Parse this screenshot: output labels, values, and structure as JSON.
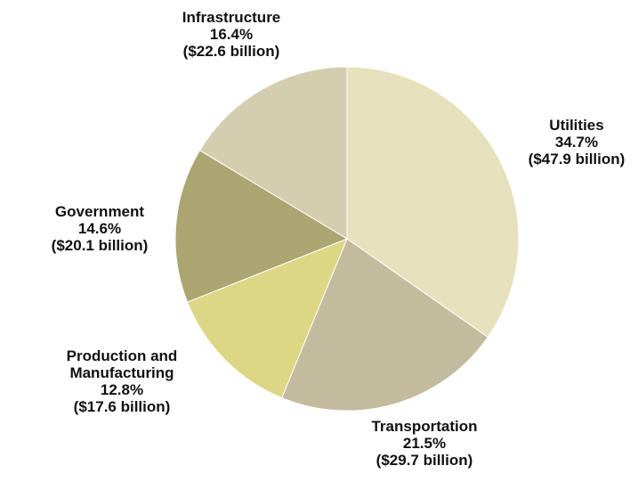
{
  "chart_data": {
    "type": "pie",
    "slices": [
      {
        "name": "Utilities",
        "percent": 34.7,
        "amount": "$47.9 billion",
        "lines": [
          "Utilities",
          "34.7%",
          "($47.9 billion)"
        ],
        "color": "#e6e1bc"
      },
      {
        "name": "Transportation",
        "percent": 21.5,
        "amount": "$29.7 billion",
        "lines": [
          "Transportation",
          "21.5%",
          "($29.7 billion)"
        ],
        "color": "#c3bb9d"
      },
      {
        "name": "Production and Manufacturing",
        "percent": 12.8,
        "amount": "$17.6 billion",
        "lines": [
          "Production and",
          "Manufacturing",
          "12.8%",
          "($17.6 billion)"
        ],
        "color": "#ddd684"
      },
      {
        "name": "Government",
        "percent": 14.6,
        "amount": "$20.1 billion",
        "lines": [
          "Government",
          "14.6%",
          "($20.1 billion)"
        ],
        "color": "#aba571"
      },
      {
        "name": "Infrastructure",
        "percent": 16.4,
        "amount": "$22.6 billion",
        "lines": [
          "Infrastructure",
          "16.4%",
          "($22.6 billion)"
        ],
        "color": "#d3ceaf"
      }
    ]
  }
}
